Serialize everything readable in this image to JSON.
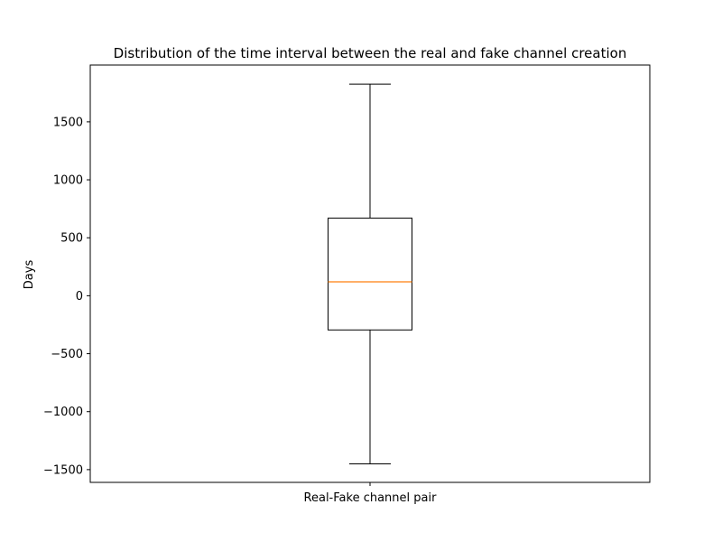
{
  "chart_data": {
    "type": "box",
    "title": "Distribution of the time interval between the real and fake channel creation",
    "xlabel": "",
    "ylabel": "Days",
    "categories": [
      "Real-Fake channel pair"
    ],
    "boxes": [
      {
        "category": "Real-Fake channel pair",
        "whisker_low": -1450,
        "q1": -295,
        "median": 120,
        "q3": 670,
        "whisker_high": 1825
      }
    ],
    "ylim": [
      -1610,
      1990
    ],
    "yticks": [
      -1500,
      -1000,
      -500,
      0,
      500,
      1000,
      1500
    ],
    "ytick_labels": [
      "−1500",
      "−1000",
      "−500",
      "0",
      "500",
      "1000",
      "1500"
    ],
    "grid": false,
    "colors": {
      "box": "#000000",
      "median": "#ff7f0e"
    }
  }
}
